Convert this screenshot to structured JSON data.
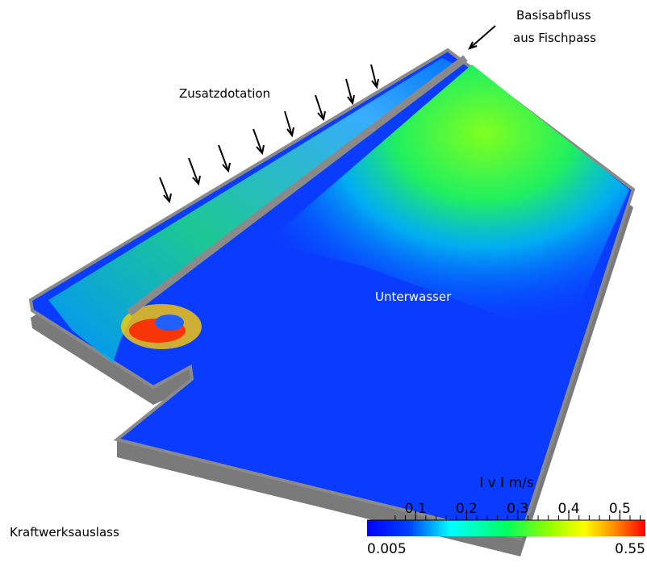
{
  "labels": {
    "inflow": [
      "Basisabfluss",
      "aus Fischpass"
    ],
    "supplement": "Zusatzdotation",
    "tailwater": "Unterwasser",
    "outlet": "Kraftwerksauslass"
  },
  "colorbar": {
    "title": "I v I m/s",
    "min": 0.005,
    "max": 0.55,
    "ticks": [
      0.1,
      0.2,
      0.3,
      0.4,
      0.5
    ]
  }
}
